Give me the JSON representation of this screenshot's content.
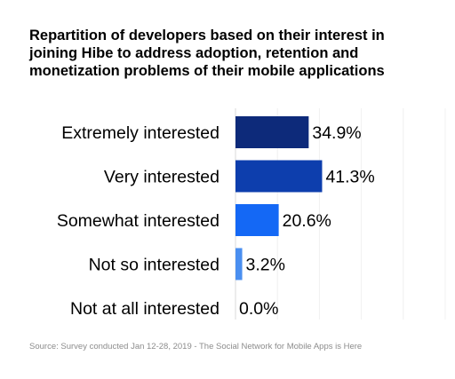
{
  "chart_data": {
    "type": "bar",
    "orientation": "horizontal",
    "title": "Repartition of developers based on their interest in\njoining Hibe to address adoption, retention and\nmonetization problems of their mobile applications",
    "categories": [
      "Extremely interested",
      "Very interested",
      "Somewhat interested",
      "Not so interested",
      "Not at all interested"
    ],
    "values": [
      34.9,
      41.3,
      20.6,
      3.2,
      0.0
    ],
    "value_labels": [
      "34.9%",
      "41.3%",
      "20.6%",
      "3.2%",
      "0.0%"
    ],
    "colors": [
      "#0d2a7a",
      "#0d3ead",
      "#1468f5",
      "#4a8ff0",
      "#7aaaf0"
    ],
    "xlabel": "",
    "ylabel": "",
    "xlim": [
      0,
      100
    ],
    "grid": true,
    "legend": "none"
  },
  "source": "Source: Survey conducted Jan 12-28, 2019 - The Social Network for Mobile Apps is Here"
}
